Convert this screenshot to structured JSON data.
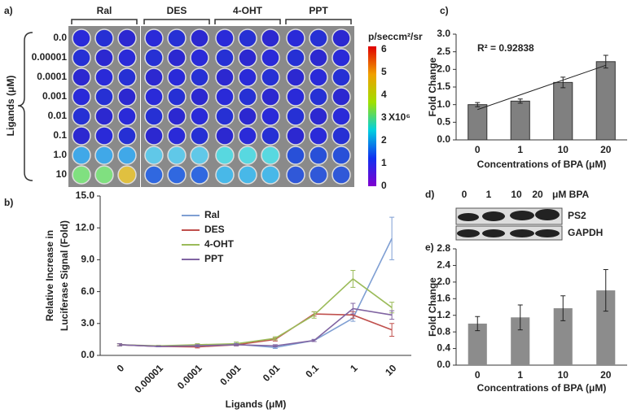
{
  "panel_labels": [
    "a)",
    "b)",
    "c)",
    "d)",
    "e)"
  ],
  "plate": {
    "columns": [
      "Ral",
      "DES",
      "4-OHT",
      "PPT"
    ],
    "rows": [
      "0.0",
      "0.00001",
      "0.0001",
      "0.001",
      "0.01",
      "0.1",
      "1.0",
      "10"
    ],
    "axis_label": "Ligands (μM)",
    "colorbar": {
      "unit": "p/seccm²/sr",
      "ticks": [
        0,
        1,
        2,
        3,
        4,
        5,
        6
      ],
      "lim": [
        0,
        6
      ],
      "multiplier": "X10⁶"
    }
  },
  "blot": {
    "lanes": [
      "0",
      "1",
      "10",
      "20"
    ],
    "unit": "μM BPA",
    "bands": [
      "PS2",
      "GAPDH"
    ]
  },
  "chart_data": [
    {
      "type": "line",
      "ylabel": [
        "Relative Increase in",
        "Luciferase Signal (Fold)"
      ],
      "xlabel": "Ligands (μM)",
      "categories": [
        "0",
        "0.00001",
        "0.0001",
        "0.001",
        "0.01",
        "0.1",
        "1",
        "10"
      ],
      "ylim": [
        0,
        15
      ],
      "yticks": [
        {
          "value": 0,
          "label": "0.0"
        },
        {
          "value": 3,
          "label": "3.0"
        },
        {
          "value": 6,
          "label": "6.0"
        },
        {
          "value": 9,
          "label": "9.0"
        },
        {
          "value": 12,
          "label": "12.0"
        },
        {
          "value": 15,
          "label": "15.0"
        }
      ],
      "legend": "top-left",
      "series": [
        {
          "name": "Ral",
          "color": "#7f9fd3",
          "values": [
            1.0,
            0.85,
            0.9,
            1.05,
            0.75,
            1.4,
            3.5,
            11.0
          ],
          "errors": [
            0.1,
            0.05,
            0.1,
            0.1,
            0.1,
            0.1,
            0.3,
            2.0
          ]
        },
        {
          "name": "DES",
          "color": "#c0504d",
          "values": [
            1.0,
            0.85,
            0.8,
            1.0,
            1.5,
            3.9,
            3.8,
            2.4
          ],
          "errors": [
            0.1,
            0.05,
            0.1,
            0.1,
            0.15,
            0.2,
            0.3,
            0.6
          ]
        },
        {
          "name": "4-OHT",
          "color": "#9bbb59",
          "values": [
            1.0,
            0.9,
            1.0,
            1.1,
            1.6,
            3.8,
            7.2,
            4.5
          ],
          "errors": [
            0.1,
            0.05,
            0.1,
            0.15,
            0.15,
            0.3,
            0.8,
            0.5
          ]
        },
        {
          "name": "PPT",
          "color": "#8064a2",
          "values": [
            1.0,
            0.85,
            0.9,
            1.0,
            0.9,
            1.4,
            4.4,
            3.8
          ],
          "errors": [
            0.1,
            0.05,
            0.1,
            0.1,
            0.1,
            0.1,
            0.5,
            0.4
          ]
        }
      ]
    },
    {
      "type": "bar",
      "ylabel": "Fold Change",
      "xlabel": "Concentrations of BPA (μM)",
      "categories": [
        "0",
        "1",
        "10",
        "20"
      ],
      "values": [
        1.0,
        1.1,
        1.63,
        2.22
      ],
      "errors": [
        0.06,
        0.06,
        0.15,
        0.18
      ],
      "color": "#808080",
      "trendline": true,
      "annotation": "R² = 0.92838",
      "ylim": [
        0,
        3
      ],
      "yticks": [
        {
          "value": 0,
          "label": "0.0"
        },
        {
          "value": 0.5,
          "label": "0.5"
        },
        {
          "value": 1,
          "label": "1.0"
        },
        {
          "value": 1.5,
          "label": "1.5"
        },
        {
          "value": 2,
          "label": "2.0"
        },
        {
          "value": 2.5,
          "label": "2.5"
        },
        {
          "value": 3,
          "label": "3.0"
        }
      ]
    },
    {
      "type": "bar",
      "ylabel": "Fold Change",
      "xlabel": "Concentrations of BPA (μM)",
      "categories": [
        "0",
        "1",
        "10",
        "20"
      ],
      "values": [
        1.0,
        1.15,
        1.37,
        1.8
      ],
      "errors": [
        0.17,
        0.3,
        0.3,
        0.5
      ],
      "color": "#8c8c8c",
      "ylim": [
        0,
        2.8
      ],
      "yticks": [
        {
          "value": 0,
          "label": "0.0"
        },
        {
          "value": 0.4,
          "label": "0.4"
        },
        {
          "value": 0.8,
          "label": "0.8"
        },
        {
          "value": 1.2,
          "label": "1.2"
        },
        {
          "value": 1.6,
          "label": "1.6"
        },
        {
          "value": 2,
          "label": "2.0"
        },
        {
          "value": 2.4,
          "label": "2.4"
        },
        {
          "value": 2.8,
          "label": "2.8"
        }
      ]
    }
  ]
}
